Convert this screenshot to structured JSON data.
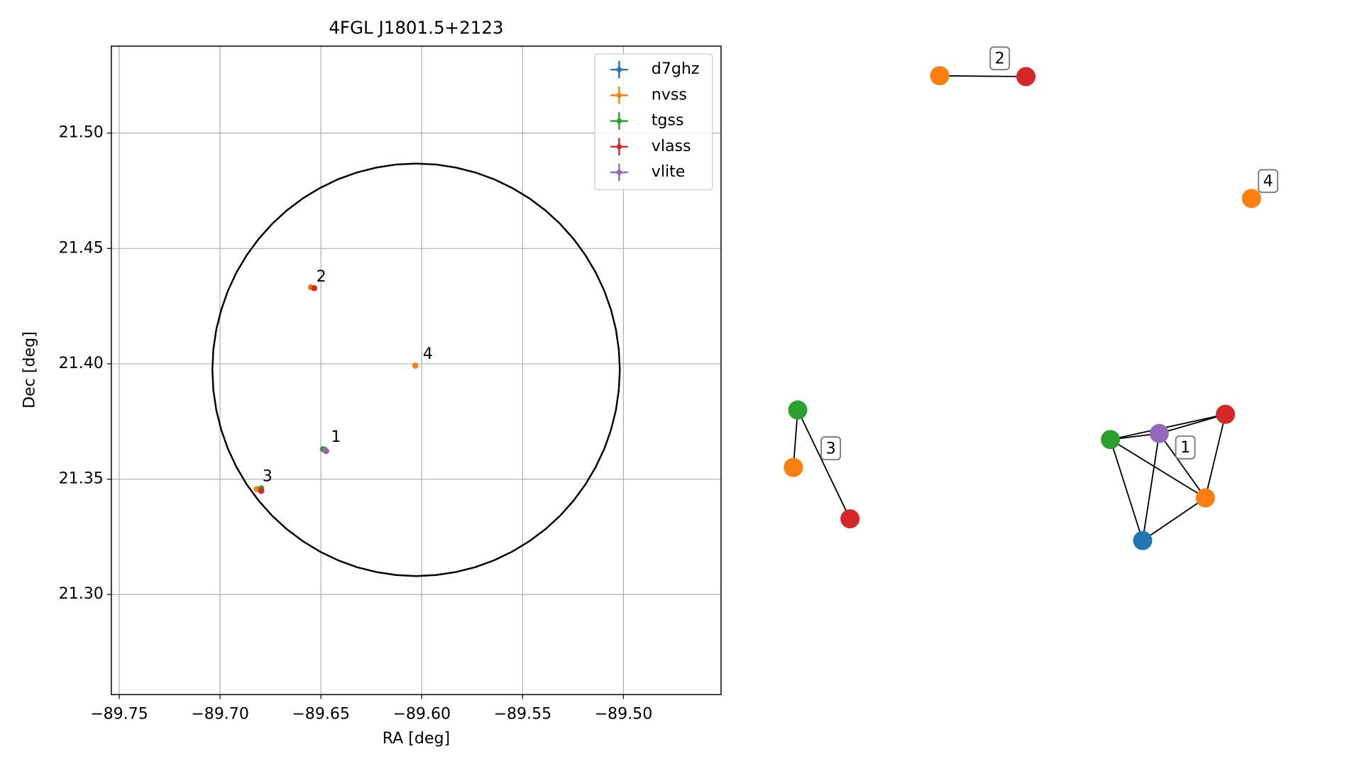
{
  "chart_data": {
    "type": "scatter",
    "title": "4FGL J1801.5+2123",
    "x_label": "RA [deg]",
    "y_label": "Dec [deg]",
    "xlim": [
      -89.7539,
      -89.4516
    ],
    "ylim": [
      21.2566,
      21.5377
    ],
    "xticks": [
      {
        "value": -89.75,
        "label": "−89.75"
      },
      {
        "value": -89.7,
        "label": "−89.70"
      },
      {
        "value": -89.65,
        "label": "−89.65"
      },
      {
        "value": -89.6,
        "label": "−89.60"
      },
      {
        "value": -89.55,
        "label": "−89.55"
      },
      {
        "value": -89.5,
        "label": "−89.50"
      }
    ],
    "yticks": [
      {
        "value": 21.3,
        "label": "21.30"
      },
      {
        "value": 21.35,
        "label": "21.35"
      },
      {
        "value": 21.4,
        "label": "21.40"
      },
      {
        "value": 21.45,
        "label": "21.45"
      },
      {
        "value": 21.5,
        "label": "21.50"
      }
    ],
    "grid": true,
    "legend": "upper right",
    "circle": {
      "x": -89.6028,
      "y": 21.3974,
      "rx": 0.101,
      "ry": 0.0894,
      "color": "#000000"
    },
    "series": [
      {
        "name": "d7ghz",
        "color": "#1f77b4",
        "x": [
          -89.6482
        ],
        "y": [
          21.3628
        ]
      },
      {
        "name": "nvss",
        "color": "#ff7f0e",
        "x": [
          -89.6478,
          -89.655,
          -89.6818,
          -89.6032
        ],
        "y": [
          21.3625,
          21.4332,
          21.3457,
          21.3992
        ]
      },
      {
        "name": "tgss",
        "color": "#2ca02c",
        "x": [
          -89.649,
          -89.6796
        ],
        "y": [
          21.363,
          21.346
        ]
      },
      {
        "name": "vlass",
        "color": "#d62728",
        "x": [
          -89.6475,
          -89.6533,
          -89.6796
        ],
        "y": [
          21.3622,
          21.4328,
          21.3449
        ]
      },
      {
        "name": "vlite",
        "color": "#9467bd",
        "x": [
          -89.6478
        ],
        "y": [
          21.3625
        ]
      }
    ],
    "annotations": [
      {
        "text": "1",
        "x": -89.6425,
        "y": 21.368
      },
      {
        "text": "2",
        "x": -89.6498,
        "y": 21.4375
      },
      {
        "text": "3",
        "x": -89.6765,
        "y": 21.351
      },
      {
        "text": "4",
        "x": -89.597,
        "y": 21.404
      }
    ]
  }
}
